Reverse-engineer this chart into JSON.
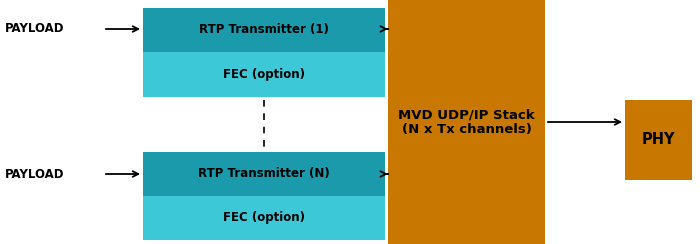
{
  "bg_color": "#ffffff",
  "rtp_dark_color": "#1a9aaa",
  "fec_light_color": "#3dc8d8",
  "mvd_color": "#c87800",
  "phy_color": "#c87800",
  "text_color": "#000000",
  "rtp1_label": "RTP Transmitter (1)",
  "fec1_label": "FEC (option)",
  "rtpN_label": "RTP Transmitter (N)",
  "fecN_label": "FEC (option)",
  "mvd_label": "MVD UDP/IP Stack\n(N x Tx channels)",
  "phy_label": "PHY",
  "payload_top": "PAYLOAD",
  "payload_bot": "PAYLOAD",
  "fontsize_rtp": 8.5,
  "fontsize_fec": 8.5,
  "fontsize_mvd": 9.5,
  "fontsize_phy": 10.5,
  "fontsize_payload": 8.5
}
